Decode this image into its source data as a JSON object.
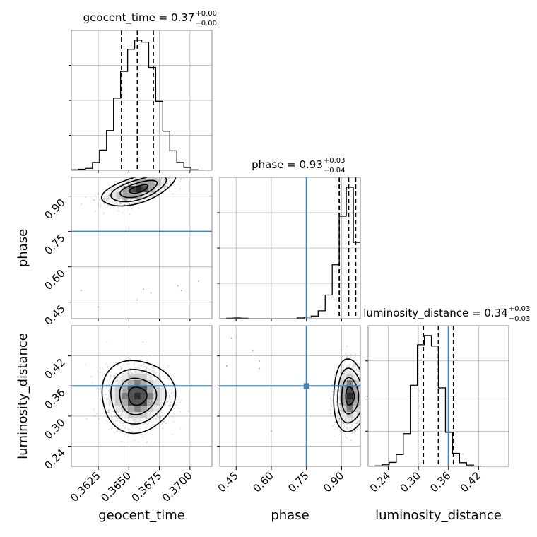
{
  "chart_data": {
    "type": "corner",
    "parameters": [
      "geocent_time",
      "phase",
      "luminosity_distance"
    ],
    "truths": {
      "geocent_time": 0.36,
      "phase": 0.75,
      "luminosity_distance": 0.36
    },
    "titles": [
      {
        "param": "geocent_time",
        "text": "geocent_time = 0.37",
        "plus": "+0.00",
        "minus": "−0.00"
      },
      {
        "param": "phase",
        "text": "phase = 0.93",
        "plus": "+0.03",
        "minus": "−0.04"
      },
      {
        "param": "luminosity_distance",
        "text": "luminosity_distance = 0.34",
        "plus": "+0.03",
        "minus": "−0.03"
      }
    ],
    "axes": {
      "geocent_time": {
        "range": [
          0.3603,
          0.3718
        ],
        "ticks": [
          "0.3625",
          "0.3650",
          "0.3675",
          "0.3700"
        ],
        "tick_values": [
          0.3625,
          0.365,
          0.3675,
          0.37
        ]
      },
      "phase": {
        "range": [
          0.38,
          0.98
        ],
        "ticks": [
          "0.45",
          "0.60",
          "0.75",
          "0.90"
        ],
        "tick_values": [
          0.45,
          0.6,
          0.75,
          0.9
        ]
      },
      "luminosity_distance": {
        "range": [
          0.2,
          0.48
        ],
        "ticks": [
          "0.24",
          "0.30",
          "0.36",
          "0.42"
        ],
        "tick_values": [
          0.24,
          0.3,
          0.36,
          0.42
        ]
      }
    },
    "histograms": {
      "geocent_time": {
        "x_start": 0.3603,
        "bin_width": 0.000575,
        "counts": [
          0.004,
          0.008,
          0.015,
          0.06,
          0.155,
          0.305,
          0.555,
          0.76,
          0.93,
          1.0,
          0.985,
          0.79,
          0.53,
          0.3,
          0.15,
          0.06,
          0.022,
          0.004,
          0.002,
          0.0
        ],
        "quantiles": [
          0.3644,
          0.3657,
          0.367
        ]
      },
      "phase": {
        "x_start": 0.38,
        "bin_width": 0.03,
        "counts": [
          0.0,
          0.003,
          0.005,
          0.003,
          0.0,
          0.0,
          0.0,
          0.0,
          0.0,
          0.0,
          0.0,
          0.005,
          0.012,
          0.02,
          0.06,
          0.18,
          0.41,
          0.78,
          1.0,
          0.58
        ],
        "quantiles": [
          0.89,
          0.93,
          0.96
        ]
      },
      "luminosity_distance": {
        "x_start": 0.2,
        "bin_width": 0.014,
        "counts": [
          0.0,
          0.004,
          0.012,
          0.03,
          0.09,
          0.25,
          0.62,
          0.93,
          1.0,
          0.92,
          0.6,
          0.26,
          0.1,
          0.028,
          0.01,
          0.002,
          0.0,
          0.0,
          0.0,
          0.0
        ],
        "quantiles": [
          0.31,
          0.34,
          0.37
        ]
      }
    },
    "contours": [
      {
        "x": "geocent_time",
        "y": "phase",
        "center": [
          0.3658,
          0.93
        ],
        "sigma": [
          0.00125,
          0.03
        ],
        "rho": 0.6
      },
      {
        "x": "geocent_time",
        "y": "luminosity_distance",
        "center": [
          0.3657,
          0.34
        ],
        "sigma": [
          0.00125,
          0.03
        ],
        "rho": 0.0
      },
      {
        "x": "phase",
        "y": "luminosity_distance",
        "center": [
          0.935,
          0.34
        ],
        "sigma": [
          0.03,
          0.03
        ],
        "rho": 0.0
      }
    ],
    "xlabels": [
      "geocent_time",
      "phase",
      "luminosity_distance"
    ],
    "ylabels": [
      "phase",
      "luminosity_distance"
    ],
    "colors": {
      "truth": "#4682b4",
      "hist": "#000000",
      "grid": "#b0b0b0",
      "points": "#888888"
    },
    "grid": true
  }
}
